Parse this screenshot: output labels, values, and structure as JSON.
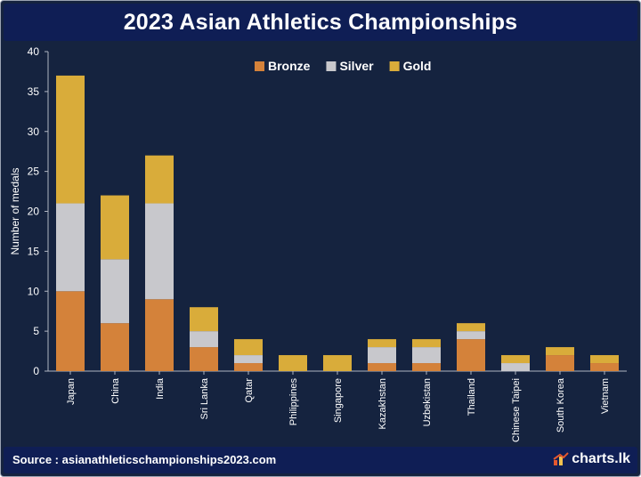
{
  "header": {
    "title": "2023 Asian Athletics Championships"
  },
  "footer": {
    "source": "Source : asianathleticschampionships2023.com",
    "brand": "charts.lk"
  },
  "chart_data": {
    "type": "bar",
    "stacked": true,
    "title": "2023 Asian Athletics Championships",
    "xlabel": "",
    "ylabel": "Number of medals",
    "ylim": [
      0,
      40
    ],
    "yticks": [
      0,
      5,
      10,
      15,
      20,
      25,
      30,
      35,
      40
    ],
    "legend_position": "top-center",
    "grid": false,
    "categories": [
      "Japan",
      "China",
      "India",
      "Sri Lanka",
      "Qatar",
      "Philippines",
      "Singapore",
      "Kazakhstan",
      "Uzbekistan",
      "Thailand",
      "Chinese Taipei",
      "South Korea",
      "Vietnam"
    ],
    "series": [
      {
        "name": "Bronze",
        "color": "#d4823a",
        "values": [
          10,
          6,
          9,
          3,
          1,
          0,
          0,
          1,
          1,
          4,
          0,
          2,
          1
        ]
      },
      {
        "name": "Silver",
        "color": "#c8c8cc",
        "values": [
          11,
          8,
          12,
          2,
          1,
          0,
          0,
          2,
          2,
          1,
          1,
          0,
          0
        ]
      },
      {
        "name": "Gold",
        "color": "#d9ac3a",
        "values": [
          16,
          8,
          6,
          3,
          2,
          2,
          2,
          1,
          1,
          1,
          1,
          1,
          1
        ]
      }
    ]
  },
  "colors": {
    "background": "#15233f",
    "header": "#0f1e55",
    "axis": "#b0b6c2",
    "text": "#ffffff"
  }
}
